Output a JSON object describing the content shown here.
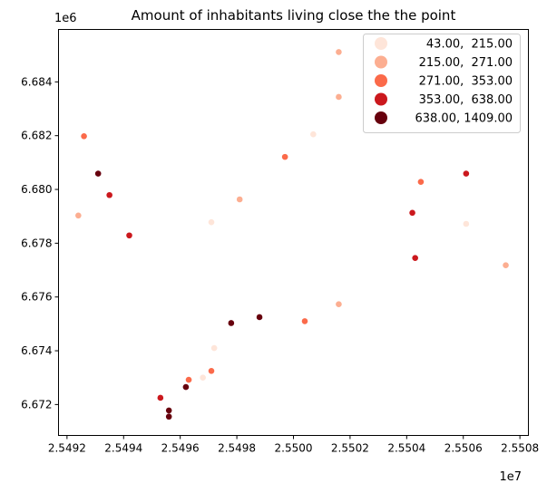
{
  "chart_data": {
    "type": "scatter",
    "title": "Amount of inhabitants living close the the point",
    "xlabel": "",
    "ylabel": "",
    "x_offset_label": "1e7",
    "y_offset_label": "1e6",
    "xlim": [
      2.54917,
      2.55083
    ],
    "ylim": [
      6.67085,
      6.68595
    ],
    "x_ticks": [
      {
        "value": 2.5492,
        "label": "2.5492"
      },
      {
        "value": 2.5494,
        "label": "2.5494"
      },
      {
        "value": 2.5496,
        "label": "2.5496"
      },
      {
        "value": 2.5498,
        "label": "2.5498"
      },
      {
        "value": 2.55,
        "label": "2.5500"
      },
      {
        "value": 2.5502,
        "label": "2.5502"
      },
      {
        "value": 2.5504,
        "label": "2.5504"
      },
      {
        "value": 2.5506,
        "label": "2.5506"
      },
      {
        "value": 2.5508,
        "label": "2.5508"
      }
    ],
    "y_ticks": [
      {
        "value": 6.672,
        "label": "6.672"
      },
      {
        "value": 6.674,
        "label": "6.674"
      },
      {
        "value": 6.676,
        "label": "6.676"
      },
      {
        "value": 6.678,
        "label": "6.678"
      },
      {
        "value": 6.68,
        "label": "6.680"
      },
      {
        "value": 6.682,
        "label": "6.682"
      },
      {
        "value": 6.684,
        "label": "6.684"
      }
    ],
    "grid": false,
    "legend_position": "top-right",
    "legend": [
      {
        "label": " 43.00,  215.00",
        "color": "#fee5d9"
      },
      {
        "label": "215.00,  271.00",
        "color": "#fcae91"
      },
      {
        "label": "271.00,  353.00",
        "color": "#fb6a4a"
      },
      {
        "label": "353.00,  638.00",
        "color": "#cb181d"
      },
      {
        "label": "638.00, 1409.00",
        "color": "#67000d"
      }
    ],
    "points": [
      {
        "x": 2.54924,
        "y": 6.67903,
        "class": 1
      },
      {
        "x": 2.54926,
        "y": 6.68198,
        "class": 2
      },
      {
        "x": 2.54931,
        "y": 6.68059,
        "class": 4
      },
      {
        "x": 2.54935,
        "y": 6.67979,
        "class": 3
      },
      {
        "x": 2.54942,
        "y": 6.67829,
        "class": 3
      },
      {
        "x": 2.54953,
        "y": 6.67225,
        "class": 3
      },
      {
        "x": 2.54956,
        "y": 6.67178,
        "class": 4
      },
      {
        "x": 2.54956,
        "y": 6.67155,
        "class": 4
      },
      {
        "x": 2.54962,
        "y": 6.67265,
        "class": 4
      },
      {
        "x": 2.54963,
        "y": 6.67292,
        "class": 2
      },
      {
        "x": 2.54968,
        "y": 6.673,
        "class": 0
      },
      {
        "x": 2.54971,
        "y": 6.67325,
        "class": 2
      },
      {
        "x": 2.54971,
        "y": 6.67878,
        "class": 0
      },
      {
        "x": 2.54972,
        "y": 6.6741,
        "class": 0
      },
      {
        "x": 2.54978,
        "y": 6.67503,
        "class": 4
      },
      {
        "x": 2.54981,
        "y": 6.67963,
        "class": 1
      },
      {
        "x": 2.54988,
        "y": 6.67525,
        "class": 4
      },
      {
        "x": 2.54997,
        "y": 6.68121,
        "class": 2
      },
      {
        "x": 2.55004,
        "y": 6.6751,
        "class": 2
      },
      {
        "x": 2.55007,
        "y": 6.68205,
        "class": 0
      },
      {
        "x": 2.55016,
        "y": 6.68511,
        "class": 1
      },
      {
        "x": 2.55016,
        "y": 6.68344,
        "class": 1
      },
      {
        "x": 2.55016,
        "y": 6.67573,
        "class": 1
      },
      {
        "x": 2.55042,
        "y": 6.67913,
        "class": 3
      },
      {
        "x": 2.55043,
        "y": 6.67745,
        "class": 3
      },
      {
        "x": 2.55045,
        "y": 6.68028,
        "class": 2
      },
      {
        "x": 2.55061,
        "y": 6.68059,
        "class": 3
      },
      {
        "x": 2.55061,
        "y": 6.67872,
        "class": 0
      },
      {
        "x": 2.55075,
        "y": 6.67718,
        "class": 1
      }
    ]
  }
}
